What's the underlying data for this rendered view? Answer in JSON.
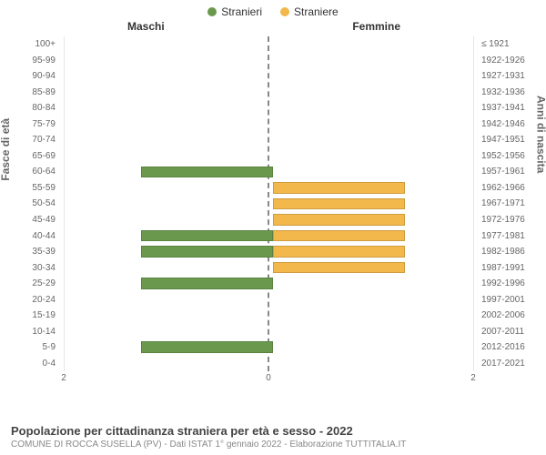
{
  "legend": {
    "male": {
      "label": "Stranieri",
      "color": "#6a994e"
    },
    "female": {
      "label": "Straniere",
      "color": "#f2b84b"
    }
  },
  "headers": {
    "left": "Maschi",
    "right": "Femmine"
  },
  "axis": {
    "left_label": "Fasce di età",
    "right_label": "Anni di nascita",
    "xmax": 2,
    "xticks": [
      "2",
      "0",
      "2"
    ],
    "grid_color": "#e6e6e6",
    "center_color": "#888888"
  },
  "rows": [
    {
      "age": "100+",
      "birth": "≤ 1921",
      "m": 0,
      "f": 0
    },
    {
      "age": "95-99",
      "birth": "1922-1926",
      "m": 0,
      "f": 0
    },
    {
      "age": "90-94",
      "birth": "1927-1931",
      "m": 0,
      "f": 0
    },
    {
      "age": "85-89",
      "birth": "1932-1936",
      "m": 0,
      "f": 0
    },
    {
      "age": "80-84",
      "birth": "1937-1941",
      "m": 0,
      "f": 0
    },
    {
      "age": "75-79",
      "birth": "1942-1946",
      "m": 0,
      "f": 0
    },
    {
      "age": "70-74",
      "birth": "1947-1951",
      "m": 0,
      "f": 0
    },
    {
      "age": "65-69",
      "birth": "1952-1956",
      "m": 0,
      "f": 0
    },
    {
      "age": "60-64",
      "birth": "1957-1961",
      "m": 1,
      "f": 0
    },
    {
      "age": "55-59",
      "birth": "1962-1966",
      "m": 0,
      "f": 1
    },
    {
      "age": "50-54",
      "birth": "1967-1971",
      "m": 0,
      "f": 1
    },
    {
      "age": "45-49",
      "birth": "1972-1976",
      "m": 0,
      "f": 1
    },
    {
      "age": "40-44",
      "birth": "1977-1981",
      "m": 1,
      "f": 1
    },
    {
      "age": "35-39",
      "birth": "1982-1986",
      "m": 1,
      "f": 1
    },
    {
      "age": "30-34",
      "birth": "1987-1991",
      "m": 0,
      "f": 1
    },
    {
      "age": "25-29",
      "birth": "1992-1996",
      "m": 1,
      "f": 0
    },
    {
      "age": "20-24",
      "birth": "1997-2001",
      "m": 0,
      "f": 0
    },
    {
      "age": "15-19",
      "birth": "2002-2006",
      "m": 0,
      "f": 0
    },
    {
      "age": "10-14",
      "birth": "2007-2011",
      "m": 0,
      "f": 0
    },
    {
      "age": "5-9",
      "birth": "2012-2016",
      "m": 1,
      "f": 0
    },
    {
      "age": "0-4",
      "birth": "2017-2021",
      "m": 0,
      "f": 0
    }
  ],
  "footer": {
    "title": "Popolazione per cittadinanza straniera per età e sesso - 2022",
    "subtitle": "COMUNE DI ROCCA SUSELLA (PV) - Dati ISTAT 1° gennaio 2022 - Elaborazione TUTTITALIA.IT"
  },
  "background_color": "#ffffff"
}
